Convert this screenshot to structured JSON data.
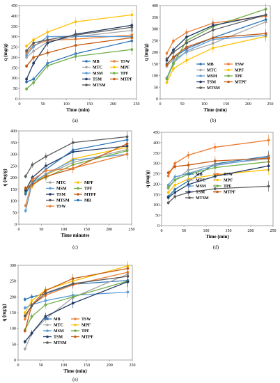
{
  "figure": {
    "panel_captions": [
      "(a)",
      "(b)",
      "(c)",
      "(d)",
      "(e)"
    ]
  },
  "chart_data": [
    {
      "type": "line",
      "caption": "(a)",
      "xlabel": "Time (min)",
      "ylabel": "q (mg/g)",
      "xlim": [
        0,
        250
      ],
      "ylim": [
        0,
        450
      ],
      "xticks": [
        0,
        50,
        100,
        150,
        200,
        250
      ],
      "yticks": [
        0,
        50,
        100,
        150,
        200,
        250,
        300,
        350,
        400,
        450
      ],
      "x": [
        15,
        30,
        60,
        120,
        240
      ],
      "legend": {
        "placement": "bottom-right",
        "columns": 2,
        "order": [
          "MB",
          "TSW",
          "MTC",
          "MPF",
          "MSM",
          "TPF",
          "TSM",
          "MTPF",
          "MTSM"
        ]
      },
      "series": [
        {
          "name": "MB",
          "color": "#2e75b6",
          "values": [
            82,
            95,
            172,
            218,
            280
          ]
        },
        {
          "name": "TSW",
          "color": "#ed7d31",
          "values": [
            222,
            258,
            282,
            288,
            308
          ]
        },
        {
          "name": "MTC",
          "color": "#a5a5a5",
          "values": [
            200,
            230,
            275,
            300,
            330
          ]
        },
        {
          "name": "MPF",
          "color": "#ffc000",
          "values": [
            255,
            285,
            322,
            372,
            405
          ]
        },
        {
          "name": "MSM",
          "color": "#5b9bd5",
          "values": [
            210,
            252,
            300,
            302,
            300
          ]
        },
        {
          "name": "TPF",
          "color": "#70ad47",
          "values": [
            48,
            78,
            160,
            205,
            238
          ]
        },
        {
          "name": "TSM",
          "color": "#1f3864",
          "values": [
            95,
            172,
            270,
            312,
            355
          ]
        },
        {
          "name": "MTPF",
          "color": "#c55a11",
          "values": [
            158,
            200,
            222,
            258,
            295
          ]
        },
        {
          "name": "MTSM",
          "color": "#595959",
          "values": [
            232,
            270,
            285,
            308,
            345
          ]
        }
      ]
    },
    {
      "type": "line",
      "caption": "(b)",
      "xlabel": "Time (min)",
      "ylabel": "q (mg/g)",
      "xlim": [
        0,
        250
      ],
      "ylim": [
        0,
        400
      ],
      "xticks": [
        0,
        50,
        100,
        150,
        200,
        250
      ],
      "yticks": [
        0,
        50,
        100,
        150,
        200,
        250,
        300,
        350,
        400
      ],
      "x": [
        15,
        30,
        60,
        120,
        240
      ],
      "legend": {
        "placement": "bottom-right",
        "columns": 2,
        "order": [
          "MB",
          "TSW",
          "MTC",
          "MPF",
          "MSM",
          "TPF",
          "TSM",
          "MTPF",
          "MTSM"
        ]
      },
      "series": [
        {
          "name": "MB",
          "color": "#2e75b6",
          "values": [
            150,
            175,
            215,
            262,
            340
          ]
        },
        {
          "name": "TSW",
          "color": "#ed7d31",
          "values": [
            195,
            248,
            285,
            325,
            355
          ]
        },
        {
          "name": "MTC",
          "color": "#a5a5a5",
          "values": [
            140,
            168,
            200,
            238,
            330
          ]
        },
        {
          "name": "MPF",
          "color": "#ffc000",
          "values": [
            70,
            130,
            165,
            218,
            268
          ]
        },
        {
          "name": "MSM",
          "color": "#5b9bd5",
          "values": [
            90,
            155,
            205,
            255,
            272
          ]
        },
        {
          "name": "TPF",
          "color": "#70ad47",
          "values": [
            85,
            150,
            250,
            310,
            385
          ]
        },
        {
          "name": "TSM",
          "color": "#1f3864",
          "values": [
            165,
            210,
            265,
            315,
            360
          ]
        },
        {
          "name": "MTPF",
          "color": "#c55a11",
          "values": [
            145,
            180,
            222,
            262,
            280
          ]
        },
        {
          "name": "MTSM",
          "color": "#595959",
          "values": [
            172,
            200,
            240,
            295,
            360
          ]
        }
      ]
    },
    {
      "type": "line",
      "caption": "(c)",
      "xlabel": "Time minutes",
      "ylabel": "q (mg/g)",
      "xlim": [
        0,
        250
      ],
      "ylim": [
        0,
        400
      ],
      "xticks": [
        0,
        50,
        100,
        150,
        200,
        250
      ],
      "yticks": [
        0,
        50,
        100,
        150,
        200,
        250,
        300,
        350,
        400
      ],
      "x": [
        15,
        30,
        60,
        120,
        240
      ],
      "legend": {
        "placement": "bottom-right",
        "columns": 2,
        "order": [
          "MTC",
          "MPF",
          "MSM",
          "TPF",
          "TSM",
          "MTPF",
          "MTSM",
          "MB",
          "TSW"
        ]
      },
      "series": [
        {
          "name": "MTC",
          "color": "#a5a5a5",
          "values": [
            140,
            170,
            212,
            265,
            320
          ]
        },
        {
          "name": "MPF",
          "color": "#ffc000",
          "values": [
            150,
            165,
            210,
            280,
            330
          ]
        },
        {
          "name": "MSM",
          "color": "#5b9bd5",
          "values": [
            58,
            178,
            215,
            275,
            300
          ]
        },
        {
          "name": "TPF",
          "color": "#70ad47",
          "values": [
            135,
            185,
            200,
            255,
            315
          ]
        },
        {
          "name": "TSM",
          "color": "#1f3864",
          "values": [
            145,
            200,
            250,
            310,
            335
          ]
        },
        {
          "name": "MTPF",
          "color": "#c55a11",
          "values": [
            155,
            170,
            205,
            238,
            345
          ]
        },
        {
          "name": "MTSM",
          "color": "#595959",
          "values": [
            205,
            255,
            290,
            350,
            375
          ]
        },
        {
          "name": "MB",
          "color": "#2e75b6",
          "values": [
            130,
            180,
            235,
            318,
            362
          ]
        },
        {
          "name": "TSW",
          "color": "#ed7d31",
          "values": [
            80,
            190,
            230,
            240,
            300
          ]
        }
      ]
    },
    {
      "type": "line",
      "caption": "(d)",
      "xlabel": "Time (min)",
      "ylabel": "q (mg/g)",
      "xlim": [
        0,
        250
      ],
      "ylim": [
        0,
        450
      ],
      "xticks": [
        0,
        50,
        100,
        150,
        200,
        250
      ],
      "yticks": [
        0,
        50,
        100,
        150,
        200,
        250,
        300,
        350,
        400,
        450
      ],
      "x": [
        15,
        30,
        60,
        120,
        240
      ],
      "legend": {
        "placement": "bottom-right",
        "columns": 2,
        "order": [
          "MB",
          "TSW",
          "MTC",
          "MPF",
          "MSM",
          "TPF",
          "TSM",
          "MTPF",
          "MTSM"
        ]
      },
      "series": [
        {
          "name": "MB",
          "color": "#2e75b6",
          "values": [
            140,
            175,
            215,
            298,
            335
          ]
        },
        {
          "name": "TSW",
          "color": "#ed7d31",
          "values": [
            240,
            300,
            340,
            378,
            412
          ]
        },
        {
          "name": "MTC",
          "color": "#a5a5a5",
          "values": [
            180,
            220,
            268,
            295,
            322
          ]
        },
        {
          "name": "MPF",
          "color": "#ffc000",
          "values": [
            160,
            195,
            225,
            245,
            270
          ]
        },
        {
          "name": "MSM",
          "color": "#5b9bd5",
          "values": [
            195,
            235,
            252,
            290,
            330
          ]
        },
        {
          "name": "TPF",
          "color": "#70ad47",
          "values": [
            185,
            220,
            248,
            280,
            308
          ]
        },
        {
          "name": "TSM",
          "color": "#1f3864",
          "values": [
            135,
            160,
            198,
            238,
            288
          ]
        },
        {
          "name": "MTPF",
          "color": "#c55a11",
          "values": [
            255,
            285,
            292,
            312,
            325
          ]
        },
        {
          "name": "MTSM",
          "color": "#595959",
          "values": [
            110,
            140,
            160,
            178,
            190
          ]
        }
      ]
    },
    {
      "type": "line",
      "caption": "(e)",
      "xlabel": "Time (min)",
      "ylabel": "q (mg/g)",
      "xlim": [
        0,
        250
      ],
      "ylim": [
        0,
        300
      ],
      "xticks": [
        0,
        50,
        100,
        150,
        200,
        250
      ],
      "yticks": [
        0,
        50,
        100,
        150,
        200,
        250,
        300
      ],
      "x": [
        15,
        30,
        60,
        120,
        240
      ],
      "legend": {
        "placement": "bottom-right",
        "columns": 2,
        "order": [
          "MB",
          "TSW",
          "MTC",
          "MPF",
          "MSM",
          "TPF",
          "TSM",
          "MTPF",
          "MTSM"
        ]
      },
      "series": [
        {
          "name": "MB",
          "color": "#2e75b6",
          "values": [
            192,
            200,
            210,
            240,
            252
          ]
        },
        {
          "name": "TSW",
          "color": "#ed7d31",
          "values": [
            130,
            175,
            205,
            238,
            278
          ]
        },
        {
          "name": "MTC",
          "color": "#a5a5a5",
          "values": [
            35,
            85,
            130,
            198,
            272
          ]
        },
        {
          "name": "MPF",
          "color": "#ffc000",
          "values": [
            150,
            188,
            222,
            250,
            298
          ]
        },
        {
          "name": "MSM",
          "color": "#5b9bd5",
          "values": [
            165,
            175,
            188,
            205,
            215
          ]
        },
        {
          "name": "TPF",
          "color": "#70ad47",
          "values": [
            95,
            138,
            175,
            200,
            250
          ]
        },
        {
          "name": "TSM",
          "color": "#1f3864",
          "values": [
            58,
            85,
            138,
            180,
            248
          ]
        },
        {
          "name": "MTPF",
          "color": "#c55a11",
          "values": [
            92,
            175,
            220,
            258,
            290
          ]
        },
        {
          "name": "MTSM",
          "color": "#595959",
          "values": [
            140,
            172,
            212,
            242,
            265
          ]
        }
      ]
    }
  ]
}
